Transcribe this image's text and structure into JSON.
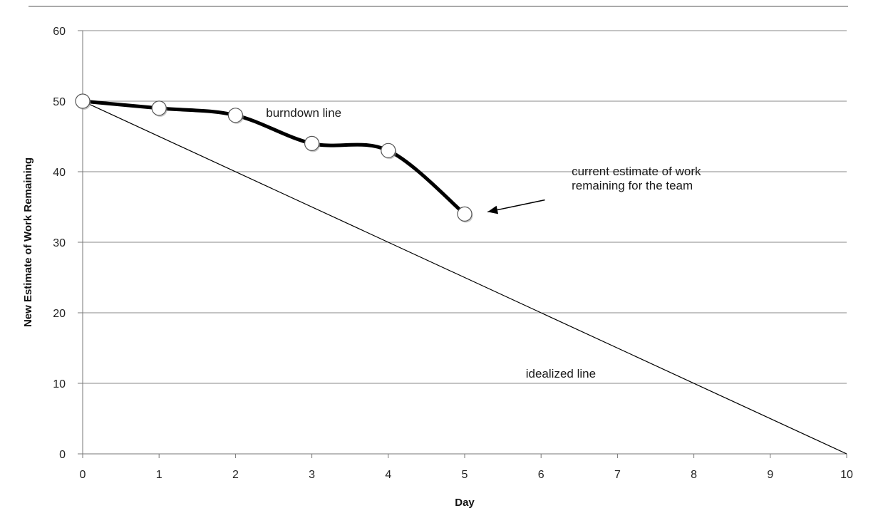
{
  "chart_data": {
    "type": "line",
    "title": "",
    "xlabel": "Day",
    "ylabel": "New Estimate of Work Remaining",
    "xlim": [
      0,
      10
    ],
    "ylim": [
      0,
      60
    ],
    "x_ticks": [
      0,
      1,
      2,
      3,
      4,
      5,
      6,
      7,
      8,
      9,
      10
    ],
    "y_ticks": [
      0,
      10,
      20,
      30,
      40,
      50,
      60
    ],
    "grid": "horizontal",
    "legend": "none",
    "series": [
      {
        "x": [
          0,
          1,
          2,
          3,
          4,
          5
        ],
        "y": [
          50,
          49,
          48,
          44,
          43,
          34
        ],
        "color": "#000000",
        "markers": "open-circle"
      },
      {
        "x": [
          0,
          10
        ],
        "y": [
          50,
          0
        ],
        "color": "#000000",
        "markers": "none"
      }
    ],
    "annotations": [
      {
        "text": "burndown line",
        "x": 2.4,
        "y": 47.8
      },
      {
        "text": "current estimate of work",
        "x": 6.4,
        "y": 39.5
      },
      {
        "text": "remaining for the team",
        "x": 6.4,
        "y": 37.5
      },
      {
        "text": "idealized line",
        "x": 5.8,
        "y": 10.8
      }
    ],
    "arrow": {
      "from": [
        6.05,
        36.0
      ],
      "to": [
        5.3,
        34.3
      ]
    }
  }
}
